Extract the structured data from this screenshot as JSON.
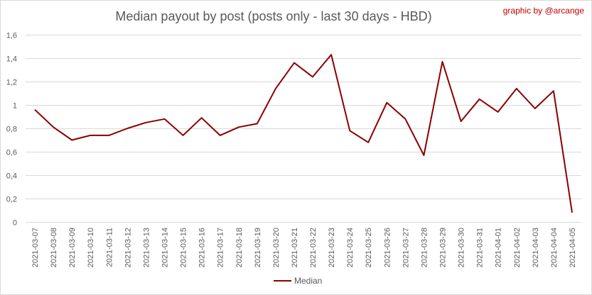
{
  "credit": "graphic by @arcange",
  "chart_data": {
    "type": "line",
    "title": "Median payout by post (posts only - last 30 days - HBD)",
    "xlabel": "",
    "ylabel": "",
    "ylim": [
      0,
      1.6
    ],
    "yticks": [
      "0",
      "0,2",
      "0,4",
      "0,6",
      "0,8",
      "1",
      "1,2",
      "1,4",
      "1,6"
    ],
    "ytick_values": [
      0,
      0.2,
      0.4,
      0.6,
      0.8,
      1.0,
      1.2,
      1.4,
      1.6
    ],
    "grid": true,
    "legend_position": "bottom",
    "categories": [
      "2021-03-07",
      "2021-03-08",
      "2021-03-09",
      "2021-03-10",
      "2021-03-11",
      "2021-03-12",
      "2021-03-13",
      "2021-03-14",
      "2021-03-15",
      "2021-03-16",
      "2021-03-17",
      "2021-03-18",
      "2021-03-19",
      "2021-03-20",
      "2021-03-21",
      "2021-03-22",
      "2021-03-23",
      "2021-03-24",
      "2021-03-25",
      "2021-03-26",
      "2021-03-27",
      "2021-03-28",
      "2021-03-29",
      "2021-03-30",
      "2021-03-31",
      "2021-04-01",
      "2021-04-02",
      "2021-04-03",
      "2021-04-04",
      "2021-04-05"
    ],
    "series": [
      {
        "name": "Median",
        "color": "#8b0000",
        "values": [
          0.96,
          0.81,
          0.7,
          0.74,
          0.74,
          0.8,
          0.85,
          0.88,
          0.74,
          0.89,
          0.74,
          0.81,
          0.84,
          1.14,
          1.36,
          1.24,
          1.43,
          0.78,
          0.68,
          1.02,
          0.88,
          0.57,
          1.37,
          0.86,
          1.05,
          0.94,
          1.14,
          0.97,
          1.12,
          0.08
        ]
      }
    ]
  }
}
